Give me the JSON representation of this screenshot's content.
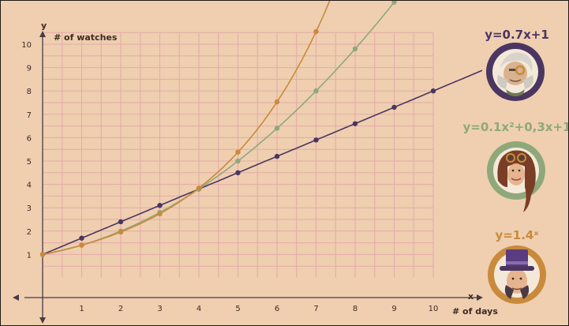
{
  "chart_data": {
    "type": "line",
    "xlabel": "# of days",
    "ylabel": "# of watches",
    "x_axis_name": "x",
    "y_axis_name": "y",
    "x_ticks": [
      "1",
      "2",
      "3",
      "4",
      "5",
      "6",
      "7",
      "8",
      "9",
      "10"
    ],
    "y_ticks": [
      "1",
      "2",
      "3",
      "4",
      "5",
      "6",
      "7",
      "8",
      "9",
      "10"
    ],
    "xlim": [
      0,
      11.2
    ],
    "ylim": [
      0,
      12.1
    ],
    "grid": true,
    "legend": "right",
    "series": [
      {
        "name": "y=0.7x+1",
        "color": "#4a3660",
        "x": [
          0,
          1,
          2,
          3,
          4,
          5,
          6,
          7,
          8,
          9,
          10
        ],
        "y": [
          1,
          1.7,
          2.4,
          3.1,
          3.8,
          4.5,
          5.2,
          5.9,
          6.6,
          7.3,
          8.0
        ]
      },
      {
        "name": "y=0.1x²+0,3x+1",
        "color": "#8ea87a",
        "x": [
          0,
          1,
          2,
          3,
          4,
          5,
          6,
          7,
          8,
          9
        ],
        "y": [
          1,
          1.4,
          2.0,
          2.8,
          3.8,
          5.0,
          6.4,
          8.0,
          9.8,
          11.8
        ]
      },
      {
        "name": "y=1.4ˣ",
        "color": "#c98a3b",
        "x": [
          0,
          1,
          2,
          3,
          4,
          5,
          6,
          7
        ],
        "y": [
          1,
          1.4,
          1.96,
          2.74,
          3.84,
          5.38,
          7.53,
          10.54
        ]
      }
    ]
  },
  "colors": {
    "background": "#efcfb0",
    "grid": "#e3aaa8",
    "axis": "#4a3a45"
  },
  "legend_icons": [
    "old-man-monocle-portrait-icon",
    "woman-goggles-portrait-icon",
    "top-hat-man-portrait-icon"
  ]
}
